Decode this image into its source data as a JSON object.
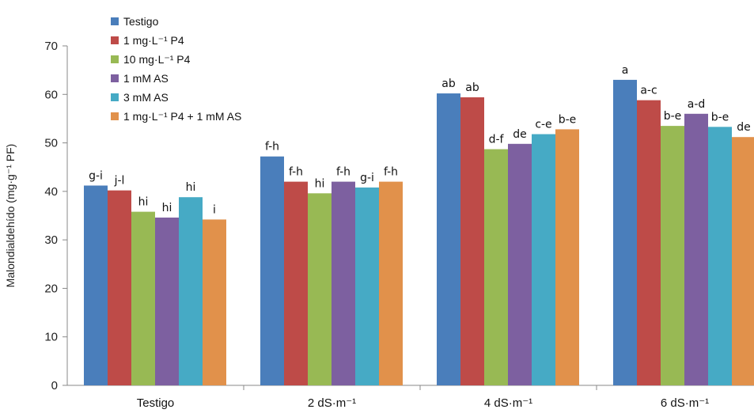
{
  "chart_data": {
    "type": "bar",
    "title": "",
    "xlabel": "",
    "ylabel": "Malondialdehído (mg·g⁻¹ PF)",
    "ylim": [
      0,
      70
    ],
    "yticks": [
      0,
      10,
      20,
      30,
      40,
      50,
      60,
      70
    ],
    "grid": false,
    "legend_position": "top-left",
    "categories": [
      "Testigo",
      "2 dS·m⁻¹",
      "4 dS·m⁻¹",
      "6 dS·m⁻¹"
    ],
    "series": [
      {
        "name": "Testigo",
        "color": "#4A7EBB",
        "values": [
          41.2,
          47.2,
          60.2,
          63.0
        ],
        "labels": [
          "g-i",
          "f-h",
          "ab",
          "a"
        ]
      },
      {
        "name": "1 mg·L⁻¹ P4",
        "color": "#BE4B48",
        "values": [
          40.2,
          42.0,
          59.4,
          58.8
        ],
        "labels": [
          "j-l",
          "f-h",
          "ab",
          "a-c"
        ]
      },
      {
        "name": "10 mg·L⁻¹ P4",
        "color": "#98B954",
        "values": [
          35.8,
          39.6,
          48.7,
          53.5
        ],
        "labels": [
          "hi",
          "hi",
          "d-f",
          "b-e"
        ]
      },
      {
        "name": "1 mM AS",
        "color": "#7D60A0",
        "values": [
          34.6,
          42.0,
          49.8,
          56.0
        ],
        "labels": [
          "hi",
          "f-h",
          "de",
          "a-d"
        ]
      },
      {
        "name": "3 mM AS",
        "color": "#46AAC5",
        "values": [
          38.8,
          40.8,
          51.8,
          53.3
        ],
        "labels": [
          "hi",
          "g-i",
          "c-e",
          "b-e"
        ]
      },
      {
        "name": "1 mg·L⁻¹ P4 + 1 mM AS",
        "color": "#E1914B",
        "values": [
          34.2,
          42.0,
          52.8,
          51.2
        ],
        "labels": [
          "i",
          "f-h",
          "b-e",
          "de"
        ]
      }
    ]
  }
}
